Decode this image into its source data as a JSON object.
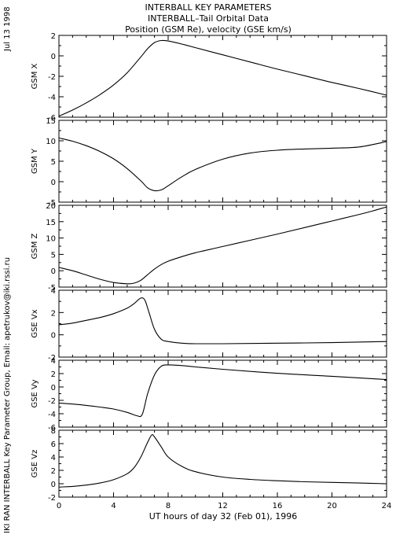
{
  "header": {
    "title_line1": "INTERBALL KEY PARAMETERS",
    "title_line2": "INTERBALL–Tail Orbital Data",
    "title_line3": "Position (GSM Re), velocity (GSE km/s)",
    "date": "Jul 13 1998",
    "credit": "IKI RAN INTERBALL Key Parameter Group, Email: apetrukov@iki.rssi.ru"
  },
  "chart_data": {
    "type": "line",
    "xlabel": "UT hours of day  32 (Feb 01), 1996",
    "x_ticks": [
      0,
      4,
      8,
      12,
      16,
      20,
      24
    ],
    "xlim": [
      0,
      24
    ],
    "grid": false,
    "panels": [
      {
        "ylabel": "GSM X",
        "ylim": [
          -6,
          2
        ],
        "y_ticks": [
          2,
          0,
          -2,
          -4,
          -6
        ],
        "x": [
          0,
          1,
          2,
          3,
          4,
          5,
          6,
          6.5,
          7,
          7.5,
          8,
          9,
          10,
          12,
          14,
          16,
          18,
          20,
          22,
          24
        ],
        "values": [
          -5.9,
          -5.3,
          -4.6,
          -3.8,
          -2.85,
          -1.65,
          -0.1,
          0.7,
          1.3,
          1.5,
          1.45,
          1.15,
          0.8,
          0.1,
          -0.6,
          -1.3,
          -1.95,
          -2.6,
          -3.2,
          -3.85
        ]
      },
      {
        "ylabel": "GSM Y",
        "ylim": [
          -5,
          15
        ],
        "y_ticks": [
          15,
          10,
          5,
          0,
          -5
        ],
        "x": [
          0,
          1,
          2,
          3,
          4,
          5,
          6,
          6.5,
          7,
          7.5,
          8,
          9,
          10,
          12,
          14,
          16,
          18,
          20,
          22,
          24
        ],
        "values": [
          10.7,
          9.9,
          8.8,
          7.4,
          5.6,
          3.2,
          0.2,
          -1.5,
          -2.2,
          -2.0,
          -1.0,
          1.2,
          3.0,
          5.5,
          7.0,
          7.7,
          8.0,
          8.2,
          8.5,
          9.8
        ]
      },
      {
        "ylabel": "GSM Z",
        "ylim": [
          -5,
          20
        ],
        "y_ticks": [
          20,
          15,
          10,
          5,
          0,
          -5
        ],
        "x": [
          0,
          1,
          2,
          3,
          4,
          5,
          5.5,
          6,
          6.5,
          7,
          7.5,
          8,
          9,
          10,
          12,
          14,
          16,
          18,
          20,
          22,
          23,
          24
        ],
        "values": [
          1.0,
          0.0,
          -1.3,
          -2.6,
          -3.6,
          -4.0,
          -3.8,
          -2.9,
          -1.2,
          0.5,
          1.9,
          2.9,
          4.3,
          5.5,
          7.4,
          9.3,
          11.2,
          13.2,
          15.2,
          17.2,
          18.3,
          19.5
        ]
      },
      {
        "ylabel": "GSE Vx",
        "ylim": [
          -2,
          4
        ],
        "y_ticks": [
          4,
          2,
          0,
          -2
        ],
        "x": [
          0,
          1,
          2,
          3,
          4,
          5,
          5.5,
          6,
          6.3,
          6.6,
          7,
          7.5,
          8,
          9,
          10,
          12,
          16,
          20,
          24
        ],
        "values": [
          0.9,
          1.05,
          1.3,
          1.55,
          1.9,
          2.4,
          2.8,
          3.3,
          3.1,
          2.0,
          0.5,
          -0.4,
          -0.6,
          -0.75,
          -0.8,
          -0.8,
          -0.75,
          -0.7,
          -0.6
        ]
      },
      {
        "ylabel": "GSE Vy",
        "ylim": [
          -6,
          4
        ],
        "y_ticks": [
          4,
          2,
          0,
          -2,
          -4,
          -6
        ],
        "x": [
          0,
          1,
          2,
          3,
          4,
          5,
          5.7,
          6.1,
          6.5,
          7,
          7.5,
          8,
          9,
          10,
          12,
          16,
          20,
          24
        ],
        "values": [
          -2.4,
          -2.55,
          -2.75,
          -3.0,
          -3.3,
          -3.8,
          -4.3,
          -4.1,
          -1.0,
          1.8,
          3.1,
          3.3,
          3.2,
          3.0,
          2.65,
          2.05,
          1.6,
          1.1
        ]
      },
      {
        "ylabel": "GSE Vz",
        "ylim": [
          -2,
          8
        ],
        "y_ticks": [
          8,
          6,
          4,
          2,
          0,
          -2
        ],
        "x": [
          0,
          1,
          2,
          3,
          4,
          5,
          5.5,
          6,
          6.5,
          6.8,
          7,
          7.5,
          8,
          9,
          10,
          12,
          14,
          16,
          18,
          20,
          22,
          24
        ],
        "values": [
          -0.5,
          -0.4,
          -0.2,
          0.1,
          0.6,
          1.5,
          2.4,
          4.0,
          6.2,
          7.3,
          7.0,
          5.5,
          4.0,
          2.6,
          1.8,
          1.0,
          0.65,
          0.45,
          0.3,
          0.2,
          0.1,
          0.0
        ]
      }
    ]
  }
}
